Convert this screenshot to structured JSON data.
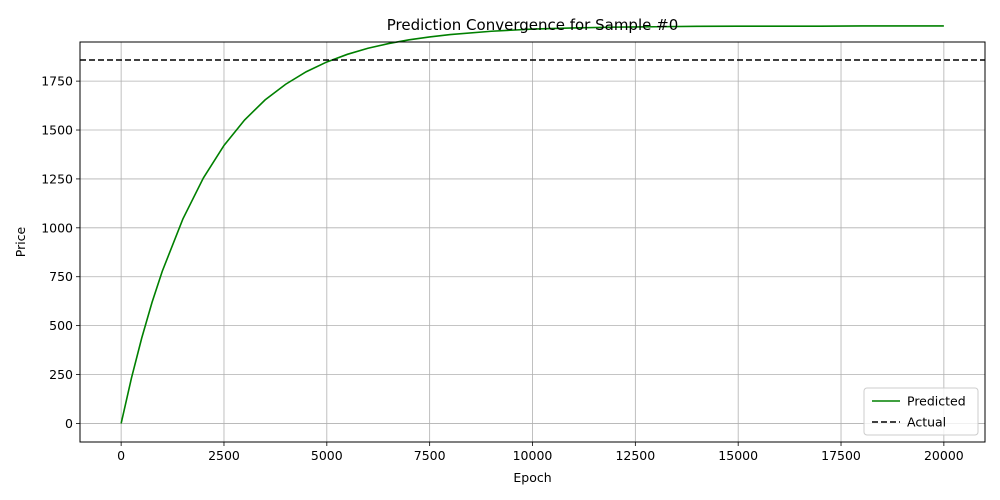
{
  "chart_data": {
    "type": "line",
    "title": "Prediction Convergence for Sample #0",
    "xlabel": "Epoch",
    "ylabel": "Price",
    "xlim": [
      -1000,
      21000
    ],
    "ylim": [
      -95,
      1950
    ],
    "xticks": [
      0,
      2500,
      5000,
      7500,
      10000,
      12500,
      15000,
      17500,
      20000
    ],
    "yticks": [
      0,
      250,
      500,
      750,
      1000,
      1250,
      1500,
      1750
    ],
    "grid": true,
    "legend_position": "lower-right",
    "series": [
      {
        "name": "Predicted",
        "color": "#008000",
        "style": "solid",
        "x": [
          0,
          250,
          500,
          750,
          1000,
          1500,
          2000,
          2500,
          3000,
          3500,
          4000,
          4500,
          5000,
          5500,
          6000,
          6500,
          7000,
          7500,
          8000,
          9000,
          10000,
          11000,
          12000,
          13000,
          14000,
          15000,
          16000,
          17000,
          18000,
          19000,
          20000
        ],
        "y": [
          0,
          231,
          436,
          618,
          778,
          1045,
          1255,
          1421,
          1551,
          1654,
          1734,
          1798,
          1848,
          1887,
          1918,
          1942,
          1961,
          1976,
          1988,
          2005,
          2016,
          2022,
          2026,
          2028,
          2030,
          2031,
          2031,
          2031,
          2032,
          2032,
          2032
        ]
      },
      {
        "name": "Actual",
        "color": "#000000",
        "style": "dashed",
        "y_constant": 1858
      }
    ]
  }
}
